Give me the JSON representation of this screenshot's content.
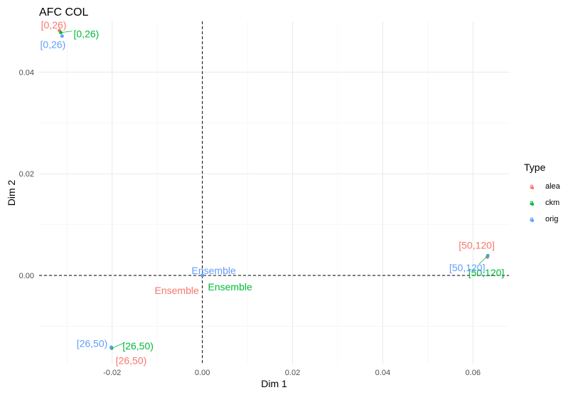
{
  "chart_data": {
    "type": "scatter",
    "title": "AFC COL",
    "xlabel": "Dim 1",
    "ylabel": "Dim 2",
    "xlim": [
      -0.0362,
      0.068
    ],
    "ylim": [
      -0.0175,
      0.05
    ],
    "x_ticks": [
      -0.02,
      0.0,
      0.02,
      0.04,
      0.06
    ],
    "x_tick_labels": [
      "-0.02",
      "0.00",
      "0.02",
      "0.04",
      "0.06"
    ],
    "y_ticks": [
      0.0,
      0.02,
      0.04
    ],
    "y_tick_labels": [
      "0.00",
      "0.02",
      "0.04"
    ],
    "grid": true,
    "reference_lines": {
      "x": 0,
      "y": 0,
      "style": "dashed"
    },
    "legend": {
      "title": "Type",
      "position": "right"
    },
    "series": [
      {
        "name": "alea",
        "color": "#F8766D",
        "points": [
          {
            "label": "[0,26)",
            "x": -0.0317,
            "y": 0.0482
          },
          {
            "label": "[26,50)",
            "x": -0.0202,
            "y": -0.0142
          },
          {
            "label": "Ensemble",
            "x": 0.0,
            "y": 0.0
          },
          {
            "label": "[50,120]",
            "x": 0.0632,
            "y": 0.0036
          }
        ]
      },
      {
        "name": "ckm",
        "color": "#00BA38",
        "points": [
          {
            "label": "[0,26)",
            "x": -0.0314,
            "y": 0.0478
          },
          {
            "label": "[26,50)",
            "x": -0.0201,
            "y": -0.0143
          },
          {
            "label": "Ensemble",
            "x": 0.0,
            "y": 0.0
          },
          {
            "label": "[50,120]",
            "x": 0.0633,
            "y": 0.0039
          }
        ]
      },
      {
        "name": "orig",
        "color": "#619CFF",
        "points": [
          {
            "label": "[0,26)",
            "x": -0.0311,
            "y": 0.0471
          },
          {
            "label": "[26,50)",
            "x": -0.0202,
            "y": -0.0141
          },
          {
            "label": "Ensemble",
            "x": 0.0,
            "y": 0.0
          },
          {
            "label": "[50,120]",
            "x": 0.0633,
            "y": 0.0038
          }
        ]
      }
    ]
  }
}
